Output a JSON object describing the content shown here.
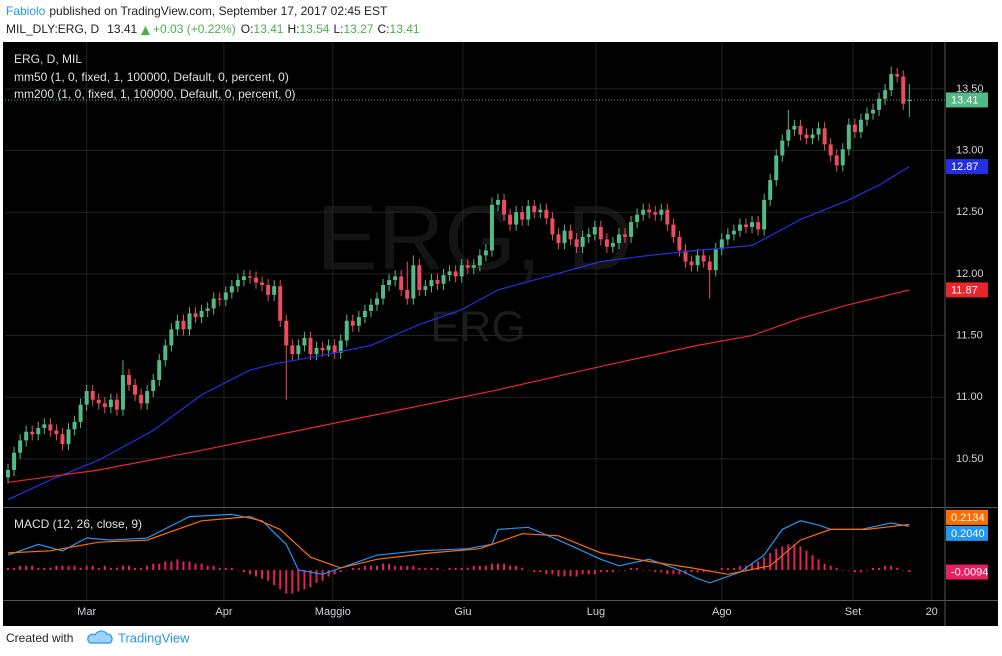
{
  "header": {
    "author": "Fabiolo",
    "published": "published on TradingView.com, September 17, 2017 02:45 EST",
    "symbol": "MIL_DLY:ERG, D",
    "price": "13.41",
    "change": "+0.03 (+0.22%)",
    "ohlc": [
      {
        "label": "O:",
        "value": "13.41"
      },
      {
        "label": "H:",
        "value": "13.54"
      },
      {
        "label": "L:",
        "value": "13.27"
      },
      {
        "label": "C:",
        "value": "13.41"
      }
    ]
  },
  "footer": {
    "created": "Created with",
    "brand": "TradingView"
  },
  "chart_data": [
    {
      "type": "candlestick",
      "title": "ERG, D, MIL",
      "watermark_title": "ERG, D",
      "watermark_symbol": "ERG",
      "up_color": "#53b987",
      "down_color": "#eb4d5c",
      "last_label": "13.41",
      "grid": true,
      "xlim": [
        -0.5,
        154.9
      ],
      "xticks": [
        {
          "value": 13,
          "label": "Mar"
        },
        {
          "value": 35.7,
          "label": "Apr"
        },
        {
          "value": 53.7,
          "label": "Maggio"
        },
        {
          "value": 75.2,
          "label": "Giu"
        },
        {
          "value": 97.2,
          "label": "Lug"
        },
        {
          "value": 118,
          "label": "Ago"
        },
        {
          "value": 139.7,
          "label": "Set"
        },
        {
          "value": 152.7,
          "label": "20"
        }
      ],
      "ylim": [
        10.11,
        13.88
      ],
      "yticks": [
        {
          "value": 10.5,
          "label": "10.50"
        },
        {
          "value": 11,
          "label": "11.00"
        },
        {
          "value": 11.5,
          "label": "11.50"
        },
        {
          "value": 12,
          "label": "12.00"
        },
        {
          "value": 12.5,
          "label": "12.50"
        },
        {
          "value": 13,
          "label": "13.00"
        },
        {
          "value": 13.5,
          "label": "13.50"
        }
      ],
      "open": [
        10.35,
        10.41,
        10.55,
        10.65,
        10.72,
        10.7,
        10.75,
        10.78,
        10.73,
        10.7,
        10.62,
        10.74,
        10.8,
        10.94,
        11.05,
        10.98,
        10.95,
        10.92,
        10.98,
        10.9,
        11.18,
        11.1,
        11.02,
        10.95,
        11.05,
        11.14,
        11.3,
        11.42,
        11.55,
        11.62,
        11.55,
        11.68,
        11.65,
        11.7,
        11.72,
        11.8,
        11.79,
        11.85,
        11.9,
        11.95,
        11.98,
        11.97,
        11.93,
        11.91,
        11.83,
        11.9,
        11.62,
        11.42,
        11.35,
        11.42,
        11.48,
        11.35,
        11.4,
        11.38,
        11.42,
        11.36,
        11.46,
        11.62,
        11.58,
        11.65,
        11.7,
        11.75,
        11.8,
        11.91,
        11.95,
        11.98,
        11.87,
        11.8,
        12.07,
        11.87,
        11.9,
        11.95,
        11.92,
        11.99,
        12.02,
        11.98,
        12.07,
        12.05,
        12.07,
        12.15,
        12.19,
        12.56,
        12.6,
        12.48,
        12.4,
        12.5,
        12.44,
        12.55,
        12.5,
        12.52,
        12.45,
        12.32,
        12.25,
        12.35,
        12.28,
        12.22,
        12.3,
        12.32,
        12.38,
        12.28,
        12.22,
        12.25,
        12.32,
        12.3,
        12.42,
        12.48,
        12.52,
        12.5,
        12.48,
        12.52,
        12.4,
        12.3,
        12.19,
        12.1,
        12.07,
        12.15,
        12.1,
        12.03,
        12.2,
        12.28,
        12.32,
        12.35,
        12.4,
        12.38,
        12.42,
        12.36,
        12.6,
        12.76,
        12.96,
        13.08,
        13.17,
        13.2,
        13.13,
        13.1,
        13.13,
        13.18,
        13.05,
        12.96,
        12.88,
        13.01,
        13.21,
        13.15,
        13.25,
        13.3,
        13.33,
        13.42,
        13.49,
        13.62,
        13.6,
        13.41
      ],
      "high": [
        10.46,
        10.6,
        10.7,
        10.77,
        10.77,
        10.8,
        10.83,
        10.83,
        10.78,
        10.75,
        10.79,
        10.85,
        10.99,
        11.1,
        11.1,
        11.03,
        11.0,
        11.03,
        11.03,
        11.3,
        11.23,
        11.15,
        11.07,
        11.1,
        11.19,
        11.35,
        11.47,
        11.6,
        11.67,
        11.67,
        11.73,
        11.73,
        11.75,
        11.77,
        11.85,
        11.85,
        11.9,
        11.95,
        12.0,
        12.03,
        12.03,
        12.02,
        11.98,
        11.96,
        11.95,
        11.95,
        11.67,
        11.47,
        11.47,
        11.53,
        11.53,
        11.45,
        11.45,
        11.47,
        11.47,
        11.51,
        11.67,
        11.67,
        11.7,
        11.75,
        11.8,
        11.85,
        11.96,
        12.0,
        12.03,
        12.03,
        12.1,
        12.15,
        12.12,
        11.95,
        12.0,
        12.0,
        12.04,
        12.07,
        12.07,
        12.12,
        12.12,
        12.12,
        12.2,
        12.24,
        12.62,
        12.65,
        12.65,
        12.53,
        12.55,
        12.55,
        12.6,
        12.6,
        12.57,
        12.57,
        12.5,
        12.37,
        12.4,
        12.4,
        12.33,
        12.35,
        12.37,
        12.43,
        12.43,
        12.33,
        12.3,
        12.37,
        12.37,
        12.47,
        12.53,
        12.57,
        12.57,
        12.55,
        12.57,
        12.57,
        12.45,
        12.35,
        12.24,
        12.15,
        12.2,
        12.2,
        12.15,
        12.25,
        12.33,
        12.37,
        12.4,
        12.45,
        12.45,
        12.47,
        12.47,
        12.65,
        12.81,
        13.01,
        13.13,
        13.33,
        13.25,
        13.25,
        13.18,
        13.18,
        13.23,
        13.23,
        13.1,
        13.01,
        13.06,
        13.26,
        13.26,
        13.3,
        13.35,
        13.38,
        13.47,
        13.54,
        13.68,
        13.67,
        13.65,
        13.54
      ],
      "low": [
        10.3,
        10.36,
        10.5,
        10.6,
        10.65,
        10.65,
        10.7,
        10.68,
        10.65,
        10.57,
        10.57,
        10.69,
        10.75,
        10.89,
        10.93,
        10.9,
        10.87,
        10.87,
        10.85,
        10.85,
        11.05,
        10.97,
        10.9,
        10.9,
        11.0,
        11.09,
        11.25,
        11.37,
        11.5,
        11.5,
        11.5,
        11.6,
        11.6,
        11.65,
        11.67,
        11.74,
        11.74,
        11.8,
        11.85,
        11.9,
        11.92,
        11.88,
        11.86,
        11.78,
        11.78,
        11.57,
        10.98,
        11.3,
        11.3,
        11.37,
        11.3,
        11.3,
        11.33,
        11.33,
        11.31,
        11.31,
        11.41,
        11.53,
        11.53,
        11.6,
        11.65,
        11.7,
        11.75,
        11.86,
        11.9,
        11.82,
        11.75,
        11.75,
        11.82,
        11.82,
        11.85,
        11.87,
        11.87,
        11.94,
        11.93,
        11.93,
        12.0,
        12.0,
        12.02,
        12.1,
        12.14,
        12.51,
        12.43,
        12.35,
        12.35,
        12.39,
        12.39,
        12.45,
        12.45,
        12.4,
        12.27,
        12.2,
        12.2,
        12.23,
        12.17,
        12.17,
        12.25,
        12.27,
        12.23,
        12.17,
        12.17,
        12.2,
        12.25,
        12.25,
        12.37,
        12.43,
        12.45,
        12.43,
        12.43,
        12.35,
        12.25,
        12.14,
        12.05,
        12.02,
        12.02,
        12.05,
        11.8,
        11.98,
        12.15,
        12.23,
        12.27,
        12.3,
        12.33,
        12.33,
        12.31,
        12.31,
        12.55,
        12.71,
        12.91,
        13.03,
        13.12,
        13.08,
        13.05,
        13.05,
        13.08,
        13.0,
        12.91,
        12.83,
        12.83,
        12.96,
        13.1,
        13.1,
        13.2,
        13.25,
        13.28,
        13.37,
        13.44,
        13.55,
        13.33,
        13.27
      ],
      "close": [
        10.41,
        10.55,
        10.65,
        10.72,
        10.7,
        10.75,
        10.78,
        10.73,
        10.7,
        10.62,
        10.74,
        10.8,
        10.94,
        11.05,
        10.98,
        10.95,
        10.92,
        10.98,
        10.9,
        11.18,
        11.1,
        11.02,
        10.95,
        11.05,
        11.14,
        11.3,
        11.42,
        11.55,
        11.62,
        11.55,
        11.68,
        11.65,
        11.7,
        11.72,
        11.8,
        11.79,
        11.85,
        11.9,
        11.95,
        11.98,
        11.97,
        11.93,
        11.91,
        11.83,
        11.9,
        11.62,
        11.42,
        11.35,
        11.42,
        11.48,
        11.35,
        11.4,
        11.38,
        11.42,
        11.36,
        11.46,
        11.62,
        11.58,
        11.65,
        11.7,
        11.75,
        11.8,
        11.91,
        11.95,
        11.98,
        11.87,
        11.8,
        12.07,
        11.87,
        11.9,
        11.95,
        11.92,
        11.99,
        12.02,
        11.98,
        12.07,
        12.05,
        12.07,
        12.15,
        12.19,
        12.56,
        12.6,
        12.48,
        12.4,
        12.5,
        12.44,
        12.55,
        12.5,
        12.52,
        12.45,
        12.32,
        12.25,
        12.35,
        12.28,
        12.22,
        12.3,
        12.32,
        12.38,
        12.28,
        12.22,
        12.25,
        12.32,
        12.3,
        12.42,
        12.48,
        12.52,
        12.5,
        12.48,
        12.52,
        12.4,
        12.3,
        12.19,
        12.1,
        12.07,
        12.15,
        12.1,
        12.03,
        12.2,
        12.28,
        12.32,
        12.35,
        12.4,
        12.38,
        12.42,
        12.36,
        12.6,
        12.76,
        12.96,
        13.08,
        13.17,
        13.2,
        13.13,
        13.1,
        13.13,
        13.18,
        13.05,
        12.96,
        12.88,
        13.01,
        13.21,
        13.15,
        13.25,
        13.3,
        13.33,
        13.42,
        13.49,
        13.62,
        13.6,
        13.38,
        13.41
      ],
      "series": [
        {
          "name": "mm50 (1, 0, fixed, 1, 100000, Default, 0, percent, 0)",
          "color": "#2430e0",
          "last_label": "12.87",
          "x": [
            0,
            7,
            15,
            24,
            32,
            40,
            44,
            52,
            60,
            68,
            75,
            81,
            90,
            98,
            106,
            114,
            123,
            131,
            139,
            144,
            149
          ],
          "values": [
            10.17,
            10.33,
            10.49,
            10.73,
            11.02,
            11.22,
            11.27,
            11.34,
            11.42,
            11.59,
            11.71,
            11.87,
            11.99,
            12.1,
            12.15,
            12.19,
            12.23,
            12.44,
            12.6,
            12.72,
            12.87
          ]
        },
        {
          "name": "mm200 (1, 0, fixed, 1, 100000, Default, 0, percent, 0)",
          "color": "#e8262b",
          "last_label": "11.87",
          "x": [
            0,
            15,
            32,
            48,
            65,
            81,
            98,
            114,
            123,
            131,
            139,
            149
          ],
          "values": [
            10.31,
            10.41,
            10.57,
            10.73,
            10.9,
            11.06,
            11.25,
            11.42,
            11.5,
            11.64,
            11.75,
            11.87
          ]
        }
      ]
    },
    {
      "type": "macd",
      "title": "MACD (12, 26, close, 9)",
      "ylim": [
        -0.14,
        0.29
      ],
      "series": [
        {
          "color": "#2196f3",
          "last_label": "0.2040",
          "x": [
            0,
            5,
            9,
            13,
            17,
            23,
            30,
            37,
            42,
            46,
            48,
            52,
            56,
            61,
            68,
            76,
            80,
            81,
            86,
            91,
            98,
            101,
            106,
            111,
            114,
            116,
            121,
            125,
            128,
            131,
            134,
            136,
            141,
            146,
            149
          ],
          "values": [
            0.07,
            0.12,
            0.09,
            0.15,
            0.14,
            0.15,
            0.25,
            0.26,
            0.23,
            0.12,
            0.0,
            -0.02,
            0.02,
            0.07,
            0.09,
            0.1,
            0.12,
            0.19,
            0.2,
            0.14,
            0.05,
            0.02,
            0.05,
            0.0,
            -0.04,
            -0.06,
            -0.01,
            0.07,
            0.19,
            0.23,
            0.21,
            0.19,
            0.19,
            0.22,
            0.204
          ]
        },
        {
          "color": "#ff6d00",
          "last_label": "0.2134",
          "x": [
            0,
            7,
            15,
            23,
            32,
            40,
            45,
            50,
            55,
            61,
            70,
            78,
            85,
            91,
            98,
            106,
            113,
            119,
            126,
            131,
            136,
            142,
            149
          ],
          "values": [
            0.08,
            0.09,
            0.13,
            0.14,
            0.23,
            0.25,
            0.19,
            0.06,
            0.01,
            0.05,
            0.08,
            0.1,
            0.17,
            0.16,
            0.08,
            0.04,
            0.01,
            -0.02,
            0.02,
            0.14,
            0.19,
            0.19,
            0.2134
          ]
        }
      ],
      "histogram": {
        "color": "#e91e63",
        "last_label": "-0.0094",
        "values": [
          0.01,
          0.01,
          0.02,
          0.02,
          0.02,
          0.01,
          0.01,
          0.01,
          0.02,
          0.02,
          0.02,
          0.02,
          0.01,
          0.02,
          0.02,
          0.01,
          0.02,
          0.01,
          0.01,
          0.02,
          0.02,
          0.01,
          0.01,
          0.02,
          0.03,
          0.03,
          0.04,
          0.04,
          0.05,
          0.04,
          0.04,
          0.03,
          0.03,
          0.02,
          0.02,
          0.01,
          0.01,
          0.01,
          0.0,
          -0.01,
          -0.02,
          -0.03,
          -0.04,
          -0.05,
          -0.07,
          -0.09,
          -0.11,
          -0.11,
          -0.1,
          -0.09,
          -0.08,
          -0.06,
          -0.05,
          -0.03,
          -0.02,
          -0.01,
          0.0,
          0.01,
          0.01,
          0.02,
          0.02,
          0.02,
          0.03,
          0.03,
          0.02,
          0.02,
          0.02,
          0.02,
          0.01,
          0.01,
          0.01,
          0.01,
          0.0,
          0.01,
          0.01,
          0.01,
          0.01,
          0.02,
          0.02,
          0.02,
          0.03,
          0.03,
          0.03,
          0.02,
          0.02,
          0.01,
          0.0,
          -0.01,
          -0.01,
          -0.02,
          -0.02,
          -0.03,
          -0.03,
          -0.03,
          -0.03,
          -0.02,
          -0.02,
          -0.02,
          -0.01,
          -0.01,
          -0.01,
          0.0,
          0.0,
          0.01,
          0.01,
          0.0,
          0.0,
          -0.01,
          -0.01,
          -0.02,
          -0.02,
          -0.02,
          -0.02,
          -0.01,
          -0.01,
          -0.01,
          0.0,
          0.0,
          0.01,
          0.01,
          0.01,
          0.02,
          0.02,
          0.03,
          0.04,
          0.06,
          0.08,
          0.1,
          0.11,
          0.12,
          0.12,
          0.11,
          0.09,
          0.07,
          0.05,
          0.03,
          0.02,
          0.01,
          0.0,
          0.0,
          -0.01,
          -0.01,
          0.0,
          0.01,
          0.01,
          0.02,
          0.02,
          0.01,
          0.0,
          -0.0094
        ]
      }
    }
  ]
}
